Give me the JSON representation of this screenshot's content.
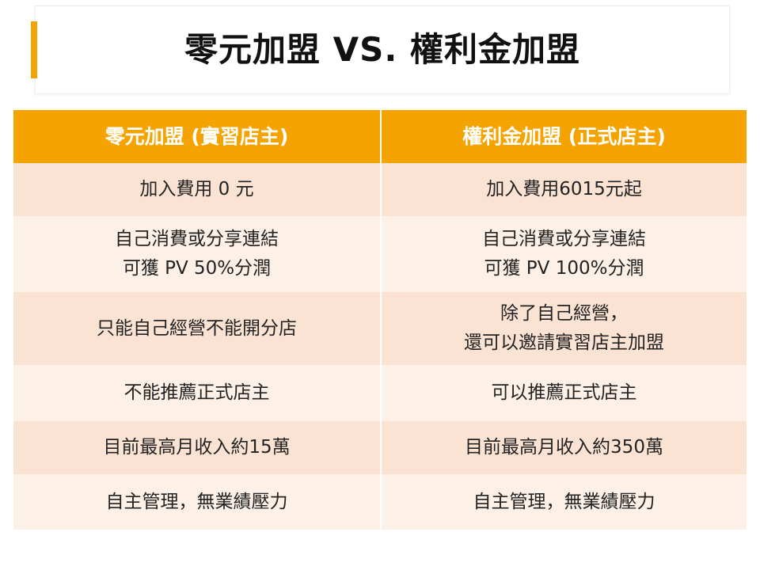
{
  "title": "零元加盟 VS. 權利金加盟",
  "accent_color": "#f5a300",
  "table": {
    "headers": [
      "零元加盟 (實習店主)",
      "權利金加盟 (正式店主)"
    ],
    "rows": [
      {
        "left": "加入費用 0 元",
        "right": "加入費用6015元起"
      },
      {
        "left": "自己消費或分享連結\n可獲 PV 50%分潤",
        "right": "自己消費或分享連結\n可獲 PV 100%分潤"
      },
      {
        "left": "只能自己經營不能開分店",
        "right": "除了自己經營，\n還可以邀請實習店主加盟"
      },
      {
        "left": "不能推薦正式店主",
        "right": "可以推薦正式店主"
      },
      {
        "left": "目前最高月收入約15萬",
        "right": "目前最高月收入約350萬"
      },
      {
        "left": "自主管理，無業績壓力",
        "right": "自主管理，無業績壓力"
      }
    ]
  },
  "colors": {
    "header_bg": "#f5a300",
    "row_shade_a": "#fbe3d3",
    "row_shade_b": "#fdf0e7"
  }
}
